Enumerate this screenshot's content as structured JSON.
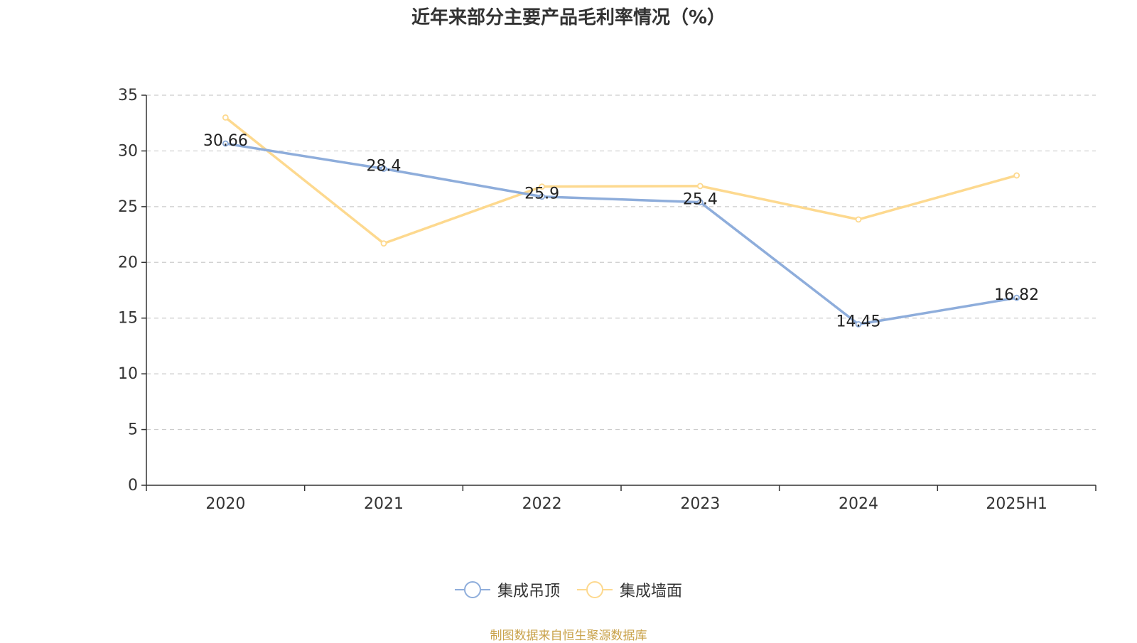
{
  "chart_data": {
    "type": "line",
    "title": "近年来部分主要产品毛利率情况（%）",
    "categories": [
      "2020",
      "2021",
      "2022",
      "2023",
      "2024",
      "2025H1"
    ],
    "ylim": [
      0,
      35
    ],
    "yticks": [
      0,
      5,
      10,
      15,
      20,
      25,
      30,
      35
    ],
    "grid": true,
    "legend_position": "bottom",
    "series": [
      {
        "name": "集成吊顶",
        "color": "#8eaddb",
        "values": [
          30.66,
          28.4,
          25.9,
          25.4,
          14.45,
          16.82
        ],
        "data_labels": [
          "30.66",
          "28.4",
          "25.9",
          "25.4",
          "14.45",
          "16.82"
        ],
        "show_labels": true
      },
      {
        "name": "集成墙面",
        "color": "#fdd98f",
        "values": [
          33.0,
          21.7,
          26.8,
          26.85,
          23.85,
          27.8
        ],
        "show_labels": false
      }
    ]
  },
  "source_note": "制图数据来自恒生聚源数据库"
}
